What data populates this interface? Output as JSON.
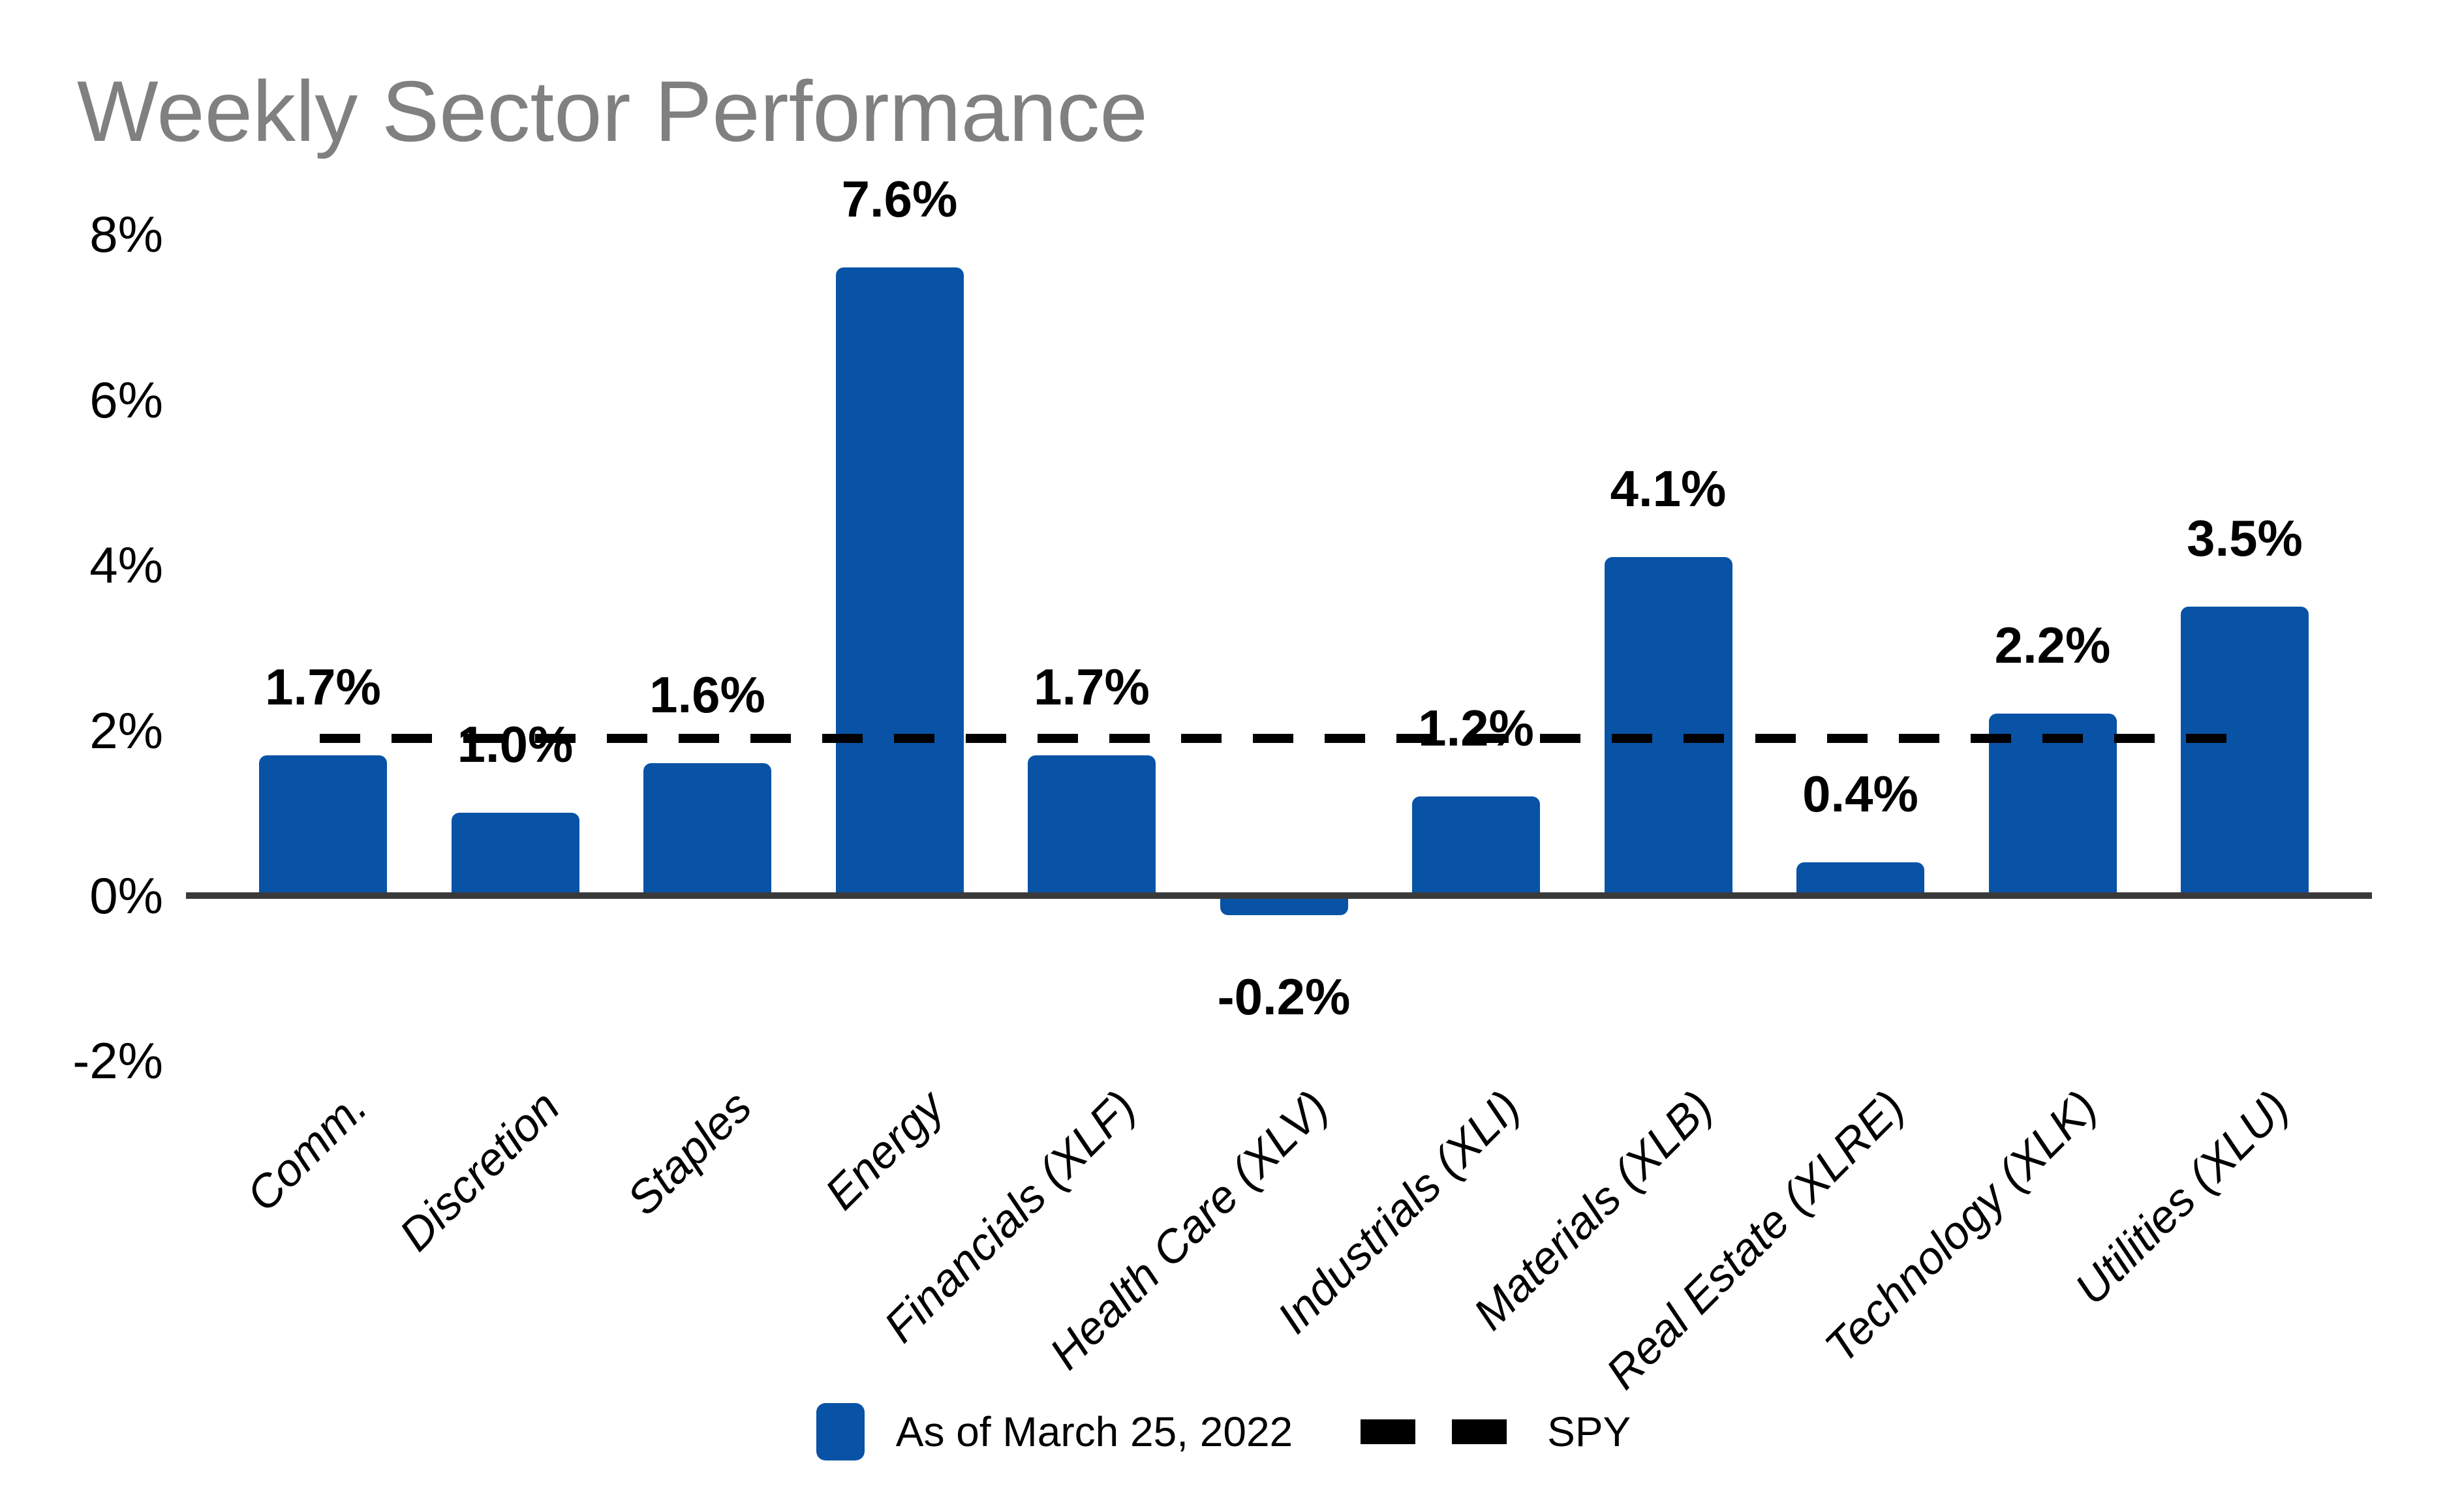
{
  "title": "Weekly Sector Performance",
  "colors": {
    "bar": "#0853A6",
    "axis_line": "#3A3A3A",
    "title_text": "#808080",
    "label_text": "#000000",
    "spy_line": "#000000"
  },
  "legend": {
    "series_label": "As of March 25, 2022",
    "spy_label": "SPY"
  },
  "chart_data": {
    "type": "bar",
    "title": "Weekly Sector Performance",
    "xlabel": "",
    "ylabel": "",
    "categories": [
      "Comm.",
      "Discretion",
      "Staples",
      "Energy",
      "Financials (XLF)",
      "Health Care (XLV)",
      "Industrials (XLI)",
      "Materials (XLB)",
      "Real Estate (XLRE)",
      "Technology (XLK)",
      "Utilities (XLU)"
    ],
    "values": [
      1.7,
      1.0,
      1.6,
      7.6,
      1.7,
      -0.2,
      1.2,
      4.1,
      0.4,
      2.2,
      3.5
    ],
    "value_labels": [
      "1.7%",
      "1.0%",
      "1.6%",
      "7.6%",
      "1.7%",
      "-0.2%",
      "1.2%",
      "4.1%",
      "0.4%",
      "2.2%",
      "3.5%"
    ],
    "y_ticks": [
      {
        "label": "8%",
        "value": 8
      },
      {
        "label": "6%",
        "value": 6
      },
      {
        "label": "4%",
        "value": 4
      },
      {
        "label": "2%",
        "value": 2
      },
      {
        "label": "0%",
        "value": 0
      },
      {
        "label": "-2%",
        "value": -2
      }
    ],
    "ylim": [
      -2.4,
      8.6
    ],
    "grid": false,
    "bar_color": "#0853A6",
    "reference_line": {
      "name": "SPY",
      "value": 1.9,
      "style": "dashed",
      "color": "#000000"
    },
    "legend_position": "bottom",
    "legend_entries": [
      "As of March 25, 2022",
      "SPY"
    ]
  }
}
